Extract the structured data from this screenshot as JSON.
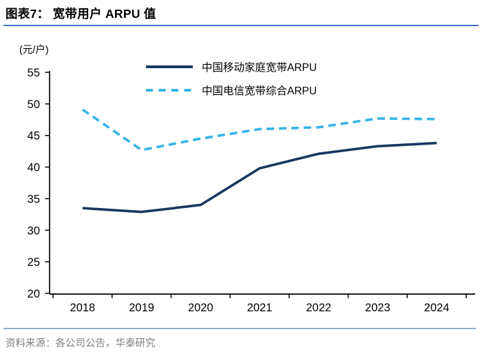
{
  "header": {
    "title": "图表7： 宽带用户 ARPU 值"
  },
  "chart": {
    "unit_label": "(元/户)"
  },
  "footer": {
    "source": "资料来源：各公司公告，华泰研究"
  },
  "colors": {
    "title_rule": "#4472C4",
    "footer_rule": "#96B1C8",
    "footer_text": "#7F7F7F",
    "axis": "#000000",
    "tick_label": "#000000"
  },
  "chart_data": {
    "type": "line",
    "title": "宽带用户 ARPU 值",
    "ylabel": "元/户",
    "categories": [
      "2018",
      "2019",
      "2020",
      "2021",
      "2022",
      "2023",
      "2024"
    ],
    "series": [
      {
        "name": "中国移动家庭宽带ARPU",
        "style": "solid",
        "color": "#17375E",
        "values": [
          33.5,
          32.9,
          34.0,
          39.8,
          42.1,
          43.3,
          43.8
        ]
      },
      {
        "name": "中国电信宽带综合ARPU",
        "style": "dashed",
        "color": "#34B4E7",
        "values": [
          49.1,
          42.7,
          44.5,
          46.0,
          46.3,
          47.7,
          47.6
        ]
      }
    ],
    "ylim": [
      20,
      55
    ],
    "ytick_interval": 5,
    "grid": false,
    "legend_position": "top-center"
  }
}
